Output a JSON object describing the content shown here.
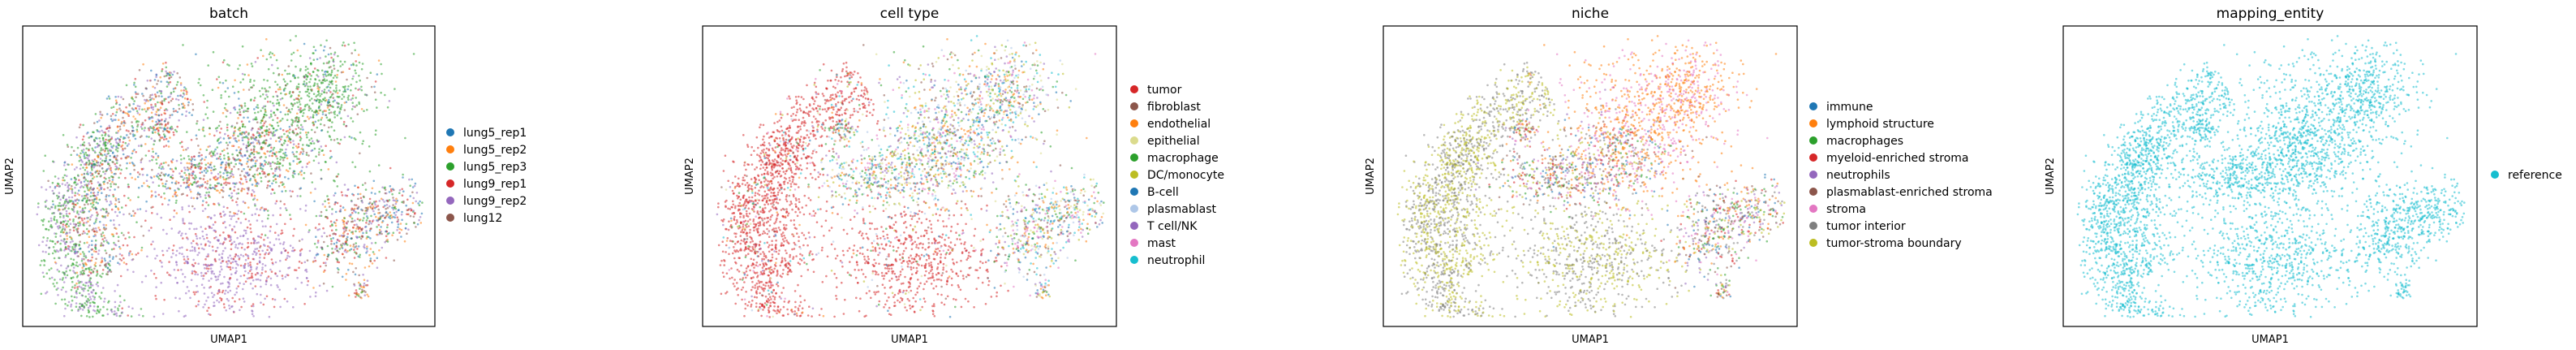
{
  "chart_data": [
    {
      "type": "scatter",
      "title": "batch",
      "xlabel": "UMAP1",
      "ylabel": "UMAP2",
      "legend_position": "right",
      "series": [
        {
          "name": "lung5_rep1",
          "color": "#1f77b4"
        },
        {
          "name": "lung5_rep2",
          "color": "#ff7f0e"
        },
        {
          "name": "lung5_rep3",
          "color": "#2ca02c"
        },
        {
          "name": "lung9_rep1",
          "color": "#d62728"
        },
        {
          "name": "lung9_rep2",
          "color": "#9467bd"
        },
        {
          "name": "lung12",
          "color": "#8c564b"
        }
      ]
    },
    {
      "type": "scatter",
      "title": "cell type",
      "xlabel": "UMAP1",
      "ylabel": "UMAP2",
      "legend_position": "right",
      "series": [
        {
          "name": "tumor",
          "color": "#d62728"
        },
        {
          "name": "fibroblast",
          "color": "#8c564b"
        },
        {
          "name": "endothelial",
          "color": "#ff7f0e"
        },
        {
          "name": "epithelial",
          "color": "#dbdb8d"
        },
        {
          "name": "macrophage",
          "color": "#2ca02c"
        },
        {
          "name": "DC/monocyte",
          "color": "#bcbd22"
        },
        {
          "name": "B-cell",
          "color": "#1f77b4"
        },
        {
          "name": "plasmablast",
          "color": "#aec7e8"
        },
        {
          "name": "T cell/NK",
          "color": "#9467bd"
        },
        {
          "name": "mast",
          "color": "#e377c2"
        },
        {
          "name": "neutrophil",
          "color": "#17becf"
        }
      ]
    },
    {
      "type": "scatter",
      "title": "niche",
      "xlabel": "UMAP1",
      "ylabel": "UMAP2",
      "legend_position": "right",
      "series": [
        {
          "name": "immune",
          "color": "#1f77b4"
        },
        {
          "name": "lymphoid structure",
          "color": "#ff7f0e"
        },
        {
          "name": "macrophages",
          "color": "#2ca02c"
        },
        {
          "name": "myeloid-enriched stroma",
          "color": "#d62728"
        },
        {
          "name": "neutrophils",
          "color": "#9467bd"
        },
        {
          "name": "plasmablast-enriched stroma",
          "color": "#8c564b"
        },
        {
          "name": "stroma",
          "color": "#e377c2"
        },
        {
          "name": "tumor interior",
          "color": "#7f7f7f"
        },
        {
          "name": "tumor-stroma boundary",
          "color": "#bcbd22"
        }
      ]
    },
    {
      "type": "scatter",
      "title": "mapping_entity",
      "xlabel": "UMAP1",
      "ylabel": "UMAP2",
      "legend_position": "right",
      "series": [
        {
          "name": "reference",
          "color": "#17becf"
        }
      ]
    }
  ]
}
